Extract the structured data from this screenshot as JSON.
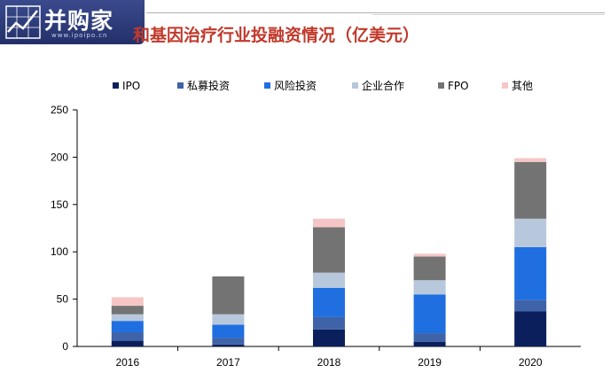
{
  "logo": {
    "text": "并购家",
    "url": "www.ipoipo.cn"
  },
  "title": "和基因治疗行业投融资情况（亿美元）",
  "colors": {
    "IPO": "#0b1f5c",
    "私募投资": "#3f63a8",
    "风险投资": "#1f6fe0",
    "企业合作": "#b8c8dc",
    "FPO": "#737373",
    "其他": "#f6c6c6"
  },
  "chart_data": {
    "type": "bar",
    "stacked": true,
    "categories": [
      "2016",
      "2017",
      "2018",
      "2019",
      "2020"
    ],
    "series": [
      {
        "name": "IPO",
        "values": [
          6,
          2,
          18,
          5,
          37
        ]
      },
      {
        "name": "私募投资",
        "values": [
          9,
          7,
          13,
          9,
          12
        ]
      },
      {
        "name": "风险投资",
        "values": [
          12,
          14,
          31,
          41,
          56
        ]
      },
      {
        "name": "企业合作",
        "values": [
          7,
          11,
          16,
          15,
          30
        ]
      },
      {
        "name": "FPO",
        "values": [
          9,
          40,
          48,
          25,
          60
        ]
      },
      {
        "name": "其他",
        "values": [
          9,
          0,
          9,
          3,
          4
        ]
      }
    ],
    "ylim": [
      0,
      250
    ],
    "yticks": [
      "0",
      "50",
      "100",
      "150",
      "200",
      "250"
    ],
    "legend_position": "top",
    "xlabel": "",
    "ylabel": ""
  }
}
